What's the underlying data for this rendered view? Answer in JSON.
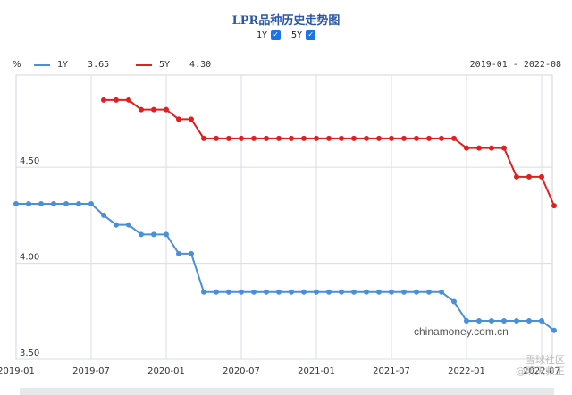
{
  "chart_data": {
    "type": "line",
    "title": "LPR品种历史走势图",
    "unit_label": "%",
    "date_range": "2019-01 - 2022-08",
    "toggles": [
      {
        "label": "1Y",
        "checked": true
      },
      {
        "label": "5Y",
        "checked": true
      }
    ],
    "x_ticks": [
      "2019-01",
      "2019-07",
      "2020-01",
      "2020-07",
      "2021-01",
      "2021-07",
      "2022-01",
      "2022-07"
    ],
    "y_ticks": [
      "3.50",
      "4.00",
      "4.50"
    ],
    "ylim": [
      3.5,
      4.98
    ],
    "grid": true,
    "source": "chinamoney.com.cn",
    "series": [
      {
        "name": "1Y",
        "latest": "3.65",
        "color": "#4a90d9",
        "x": [
          "2019-01",
          "2019-02",
          "2019-03",
          "2019-04",
          "2019-05",
          "2019-06",
          "2019-07",
          "2019-08",
          "2019-09",
          "2019-10",
          "2019-11",
          "2019-12",
          "2020-01",
          "2020-02",
          "2020-03",
          "2020-04",
          "2020-05",
          "2020-06",
          "2020-07",
          "2020-08",
          "2020-09",
          "2020-10",
          "2020-11",
          "2020-12",
          "2021-01",
          "2021-02",
          "2021-03",
          "2021-04",
          "2021-05",
          "2021-06",
          "2021-07",
          "2021-08",
          "2021-09",
          "2021-10",
          "2021-11",
          "2021-12",
          "2022-01",
          "2022-02",
          "2022-03",
          "2022-04",
          "2022-05",
          "2022-06",
          "2022-07",
          "2022-08"
        ],
        "values": [
          4.31,
          4.31,
          4.31,
          4.31,
          4.31,
          4.31,
          4.31,
          4.25,
          4.2,
          4.2,
          4.15,
          4.15,
          4.15,
          4.05,
          4.05,
          3.85,
          3.85,
          3.85,
          3.85,
          3.85,
          3.85,
          3.85,
          3.85,
          3.85,
          3.85,
          3.85,
          3.85,
          3.85,
          3.85,
          3.85,
          3.85,
          3.85,
          3.85,
          3.85,
          3.85,
          3.8,
          3.7,
          3.7,
          3.7,
          3.7,
          3.7,
          3.7,
          3.7,
          3.65
        ]
      },
      {
        "name": "5Y",
        "latest": "4.30",
        "color": "#e02020",
        "x": [
          "2019-08",
          "2019-09",
          "2019-10",
          "2019-11",
          "2019-12",
          "2020-01",
          "2020-02",
          "2020-03",
          "2020-04",
          "2020-05",
          "2020-06",
          "2020-07",
          "2020-08",
          "2020-09",
          "2020-10",
          "2020-11",
          "2020-12",
          "2021-01",
          "2021-02",
          "2021-03",
          "2021-04",
          "2021-05",
          "2021-06",
          "2021-07",
          "2021-08",
          "2021-09",
          "2021-10",
          "2021-11",
          "2021-12",
          "2022-01",
          "2022-02",
          "2022-03",
          "2022-04",
          "2022-05",
          "2022-06",
          "2022-07",
          "2022-08"
        ],
        "values": [
          4.85,
          4.85,
          4.85,
          4.8,
          4.8,
          4.8,
          4.75,
          4.75,
          4.65,
          4.65,
          4.65,
          4.65,
          4.65,
          4.65,
          4.65,
          4.65,
          4.65,
          4.65,
          4.65,
          4.65,
          4.65,
          4.65,
          4.65,
          4.65,
          4.65,
          4.65,
          4.65,
          4.65,
          4.65,
          4.6,
          4.6,
          4.6,
          4.6,
          4.45,
          4.45,
          4.45,
          4.3
        ]
      }
    ]
  },
  "overlay": {
    "social_line1": "雪球社区",
    "social_line2": "@明天救王"
  }
}
